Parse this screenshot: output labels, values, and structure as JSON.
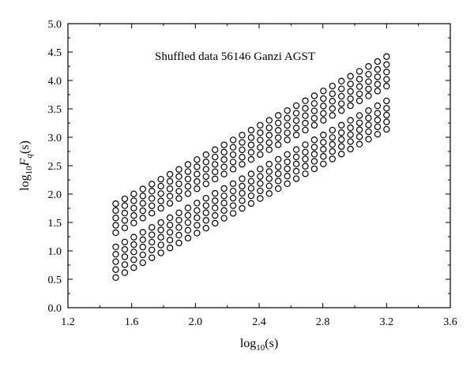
{
  "chart_data": {
    "type": "scatter",
    "title": "",
    "annotation": "Shuffled data 56146 Ganzi AGST",
    "xlabel": {
      "prefix": "log",
      "sub": "10",
      "suffix": "(s)"
    },
    "ylabel": {
      "prefix": "log",
      "sub": "10",
      "var": "F",
      "varsub": "q",
      "suffix": "(s)"
    },
    "xlim": [
      1.2,
      3.6
    ],
    "ylim": [
      0.0,
      5.0
    ],
    "xticks": [
      "1.2",
      "1.6",
      "2.0",
      "2.4",
      "2.8",
      "3.2",
      "3.6"
    ],
    "yticks": [
      "0.0",
      "0.5",
      "1.0",
      "1.5",
      "2.0",
      "2.5",
      "3.0",
      "3.5",
      "4.0",
      "4.5",
      "5.0"
    ],
    "grid": false,
    "legend": "none",
    "marker": "open-circle",
    "x_range": [
      1.5,
      3.2
    ],
    "x_step": 0.0567,
    "series": [
      {
        "band": "upper",
        "q": 1,
        "y_start": 1.32,
        "y_end": 3.9
      },
      {
        "band": "upper",
        "q": 2,
        "y_start": 1.45,
        "y_end": 4.02
      },
      {
        "band": "upper",
        "q": 3,
        "y_start": 1.58,
        "y_end": 4.15
      },
      {
        "band": "upper",
        "q": 4,
        "y_start": 1.71,
        "y_end": 4.28
      },
      {
        "band": "upper",
        "q": 5,
        "y_start": 1.83,
        "y_end": 4.42
      },
      {
        "band": "lower",
        "q": 6,
        "y_start": 0.53,
        "y_end": 3.14
      },
      {
        "band": "lower",
        "q": 7,
        "y_start": 0.67,
        "y_end": 3.27
      },
      {
        "band": "lower",
        "q": 8,
        "y_start": 0.81,
        "y_end": 3.39
      },
      {
        "band": "lower",
        "q": 9,
        "y_start": 0.94,
        "y_end": 3.51
      },
      {
        "band": "lower",
        "q": 10,
        "y_start": 1.07,
        "y_end": 3.64
      }
    ]
  }
}
